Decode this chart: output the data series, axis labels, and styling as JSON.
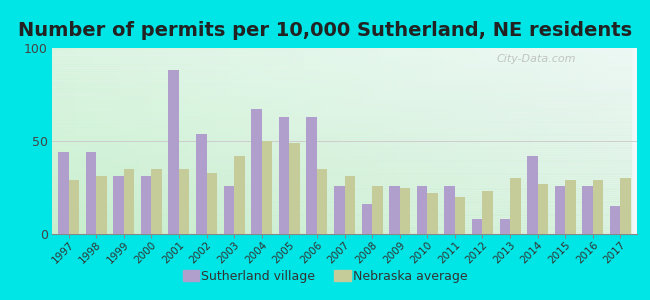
{
  "title": "Number of permits per 10,000 Sutherland, NE residents",
  "years": [
    1997,
    1998,
    1999,
    2000,
    2001,
    2002,
    2003,
    2004,
    2005,
    2006,
    2007,
    2008,
    2009,
    2010,
    2011,
    2012,
    2013,
    2014,
    2015,
    2016,
    2017
  ],
  "sutherland": [
    44,
    44,
    31,
    31,
    88,
    54,
    26,
    67,
    63,
    63,
    26,
    16,
    26,
    26,
    26,
    8,
    8,
    42,
    26,
    26,
    15
  ],
  "nebraska": [
    29,
    31,
    35,
    35,
    35,
    33,
    42,
    50,
    49,
    35,
    31,
    26,
    25,
    22,
    20,
    23,
    30,
    27,
    29,
    29,
    30
  ],
  "sutherland_color": "#b09fcc",
  "nebraska_color": "#c5cc9a",
  "outer_background": "#00e5e5",
  "ylim": [
    0,
    100
  ],
  "yticks": [
    0,
    50,
    100
  ],
  "bar_width": 0.38,
  "title_fontsize": 14,
  "legend_sutherland": "Sutherland village",
  "legend_nebraska": "Nebraska average"
}
